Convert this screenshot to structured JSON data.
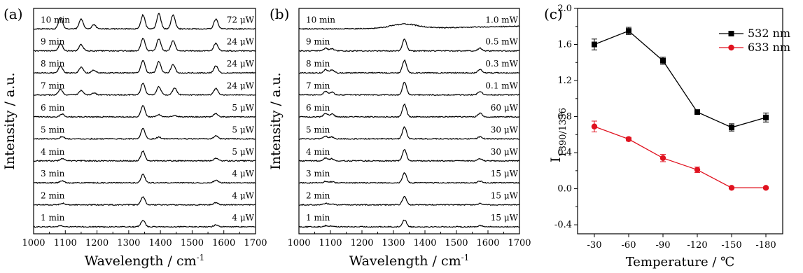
{
  "colors": {
    "series_532": "#000000",
    "series_633": "#e0121f"
  },
  "chart_data": [
    {
      "type": "line",
      "panel_label": "(a)",
      "xlabel": "Wavelength / cm",
      "xlabel_sup": "-1",
      "ylabel": "Intensity / a.u.",
      "xlim": [
        1000,
        1700
      ],
      "xticks": [
        1000,
        1100,
        1200,
        1300,
        1400,
        1500,
        1600,
        1700
      ],
      "traces": [
        {
          "time": "1 min",
          "power": "4 μW",
          "peaks": [
            [
              1085,
              0.8
            ],
            [
              1345,
              4.8
            ],
            [
              1575,
              1.4
            ]
          ]
        },
        {
          "time": "2 min",
          "power": "4 μW",
          "peaks": [
            [
              1090,
              1.2
            ],
            [
              1345,
              5.5
            ],
            [
              1575,
              1.6
            ]
          ]
        },
        {
          "time": "3 min",
          "power": "4 μW",
          "peaks": [
            [
              1090,
              1.4
            ],
            [
              1345,
              6.0
            ],
            [
              1575,
              1.8
            ]
          ]
        },
        {
          "time": "4 min",
          "power": "5 μW",
          "peaks": [
            [
              1090,
              1.6
            ],
            [
              1345,
              7.0
            ],
            [
              1575,
              2.0
            ]
          ]
        },
        {
          "time": "5 min",
          "power": "5 μW",
          "peaks": [
            [
              1090,
              1.7
            ],
            [
              1345,
              7.5
            ],
            [
              1395,
              1.2
            ],
            [
              1575,
              2.2
            ]
          ]
        },
        {
          "time": "6 min",
          "power": "5 μW",
          "peaks": [
            [
              1090,
              2.0
            ],
            [
              1345,
              8.0
            ],
            [
              1395,
              1.6
            ],
            [
              1445,
              1.0
            ],
            [
              1575,
              2.5
            ]
          ]
        },
        {
          "time": "7 min",
          "power": "24 μW",
          "peaks": [
            [
              1085,
              4.0
            ],
            [
              1150,
              3.0
            ],
            [
              1190,
              1.5
            ],
            [
              1345,
              8.5
            ],
            [
              1395,
              6.0
            ],
            [
              1445,
              5.0
            ],
            [
              1575,
              4.5
            ]
          ]
        },
        {
          "time": "8 min",
          "power": "24 μW",
          "peaks": [
            [
              1085,
              5.0
            ],
            [
              1150,
              4.0
            ],
            [
              1190,
              2.0
            ],
            [
              1345,
              9.0
            ],
            [
              1395,
              8.0
            ],
            [
              1440,
              6.0
            ],
            [
              1575,
              5.0
            ]
          ]
        },
        {
          "time": "9 min",
          "power": "24 μW",
          "peaks": [
            [
              1085,
              5.0
            ],
            [
              1150,
              4.5
            ],
            [
              1345,
              9.0
            ],
            [
              1395,
              8.5
            ],
            [
              1440,
              7.5
            ],
            [
              1575,
              5.5
            ]
          ]
        },
        {
          "time": "10 min",
          "power": "72 μW",
          "peaks": [
            [
              1085,
              8.0
            ],
            [
              1150,
              7.0
            ],
            [
              1190,
              3.0
            ],
            [
              1345,
              10.0
            ],
            [
              1395,
              11.0
            ],
            [
              1440,
              10.0
            ],
            [
              1575,
              7.0
            ]
          ]
        }
      ]
    },
    {
      "type": "line",
      "panel_label": "(b)",
      "xlabel": "Wavelength / cm",
      "xlabel_sup": "-1",
      "ylabel": "Intensity / a.u.",
      "xlim": [
        1000,
        1700
      ],
      "xticks": [
        1000,
        1100,
        1200,
        1300,
        1400,
        1500,
        1600,
        1700
      ],
      "traces": [
        {
          "time": "1 min",
          "power": "15 μW",
          "peaks": [
            [
              1085,
              0.8
            ],
            [
              1105,
              0.6
            ],
            [
              1335,
              5.0
            ],
            [
              1575,
              1.0
            ]
          ]
        },
        {
          "time": "2 min",
          "power": "15 μW",
          "peaks": [
            [
              1085,
              1.0
            ],
            [
              1105,
              0.7
            ],
            [
              1335,
              6.0
            ],
            [
              1575,
              1.0
            ]
          ]
        },
        {
          "time": "3 min",
          "power": "15 μW",
          "peaks": [
            [
              1085,
              1.0
            ],
            [
              1105,
              0.8
            ],
            [
              1335,
              7.0
            ],
            [
              1575,
              1.2
            ]
          ]
        },
        {
          "time": "4 min",
          "power": "30 μW",
          "peaks": [
            [
              1085,
              2.0
            ],
            [
              1105,
              1.5
            ],
            [
              1335,
              8.0
            ],
            [
              1575,
              1.5
            ]
          ]
        },
        {
          "time": "5 min",
          "power": "30 μW",
          "peaks": [
            [
              1085,
              1.8
            ],
            [
              1105,
              1.4
            ],
            [
              1335,
              8.5
            ],
            [
              1575,
              1.6
            ]
          ]
        },
        {
          "time": "6 min",
          "power": "60 μW",
          "peaks": [
            [
              1085,
              2.5
            ],
            [
              1105,
              2.0
            ],
            [
              1335,
              9.0
            ],
            [
              1575,
              2.5
            ]
          ]
        },
        {
          "time": "7 min",
          "power": "0.1 mW",
          "peaks": [
            [
              1085,
              2.5
            ],
            [
              1105,
              2.0
            ],
            [
              1335,
              9.0
            ],
            [
              1575,
              2.5
            ]
          ]
        },
        {
          "time": "8 min",
          "power": "0.3 mW",
          "peaks": [
            [
              1085,
              2.5
            ],
            [
              1105,
              2.0
            ],
            [
              1335,
              9.0
            ],
            [
              1575,
              2.5
            ]
          ]
        },
        {
          "time": "9 min",
          "power": "0.5 mW",
          "peaks": [
            [
              1085,
              2.0
            ],
            [
              1105,
              1.5
            ],
            [
              1335,
              8.5
            ],
            [
              1575,
              2.0
            ]
          ]
        },
        {
          "time": "10 min",
          "power": "1.0 mW",
          "broad": true,
          "peaks": [
            [
              1335,
              6.0
            ]
          ]
        }
      ]
    },
    {
      "type": "line",
      "panel_label": "(c)",
      "xlabel": "Temperature / ℃",
      "ylabel": "I",
      "ylabel_sub": "1390/1336",
      "categories": [
        "-30",
        "-60",
        "-90",
        "-120",
        "-150",
        "-180"
      ],
      "ylim": [
        -0.5,
        2.0
      ],
      "yticks": [
        -0.4,
        0.0,
        0.4,
        0.8,
        1.2,
        1.6,
        2.0
      ],
      "legend_position": "top-right",
      "series": [
        {
          "name": "532 nm",
          "marker": "square",
          "values": [
            1.6,
            1.75,
            1.42,
            0.85,
            0.68,
            0.79
          ],
          "errors": [
            0.06,
            0.04,
            0.04,
            0.02,
            0.04,
            0.05
          ]
        },
        {
          "name": "633 nm",
          "marker": "circle",
          "values": [
            0.69,
            0.55,
            0.34,
            0.21,
            0.01,
            0.01
          ],
          "errors": [
            0.06,
            0.02,
            0.04,
            0.03,
            0.01,
            0.01
          ]
        }
      ]
    }
  ]
}
